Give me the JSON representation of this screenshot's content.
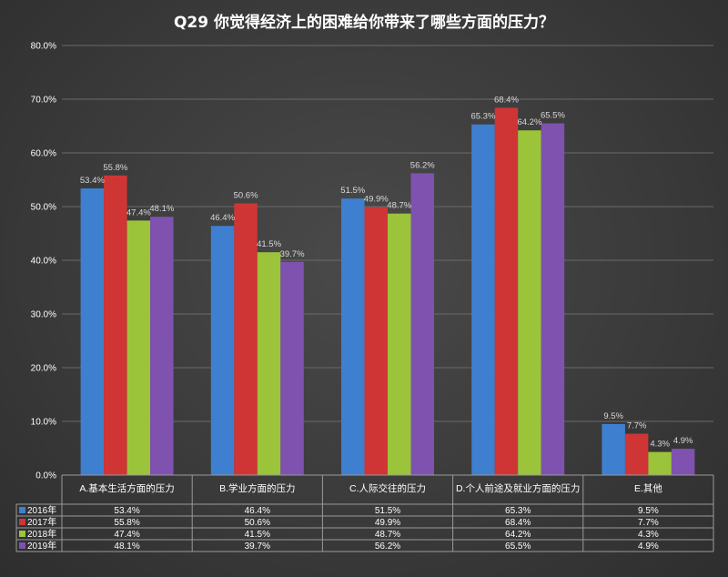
{
  "chart_data": {
    "type": "bar",
    "title": "Q29 你觉得经济上的困难给你带来了哪些方面的压力？",
    "categories": [
      "A.基本生活方面的压力",
      "B.学业方面的压力",
      "C.人际交往的压力",
      "D.个人前途及就业方面的压力",
      "E.其他"
    ],
    "series": [
      {
        "name": "2016年",
        "color": "#3f7fd0",
        "values": [
          53.4,
          46.4,
          51.5,
          65.3,
          9.5
        ],
        "labels": [
          "53.4%",
          "46.4%",
          "51.5%",
          "65.3%",
          "9.5%"
        ]
      },
      {
        "name": "2017年",
        "color": "#d03535",
        "values": [
          55.8,
          50.6,
          49.9,
          68.4,
          7.7
        ],
        "labels": [
          "55.8%",
          "50.6%",
          "49.9%",
          "68.4%",
          "7.7%"
        ]
      },
      {
        "name": "2018年",
        "color": "#9bc43b",
        "values": [
          47.4,
          41.5,
          48.7,
          64.2,
          4.3
        ],
        "labels": [
          "47.4%",
          "41.5%",
          "48.7%",
          "64.2%",
          "4.3%"
        ]
      },
      {
        "name": "2019年",
        "color": "#7f52b0",
        "values": [
          48.1,
          39.7,
          56.2,
          65.5,
          4.9
        ],
        "labels": [
          "48.1%",
          "39.7%",
          "56.2%",
          "65.5%",
          "4.9%"
        ]
      }
    ],
    "ylim": [
      0,
      80
    ],
    "yticks": [
      "0.0%",
      "10.0%",
      "20.0%",
      "30.0%",
      "40.0%",
      "50.0%",
      "60.0%",
      "70.0%",
      "80.0%"
    ],
    "grid": true,
    "legend": "data-table"
  }
}
